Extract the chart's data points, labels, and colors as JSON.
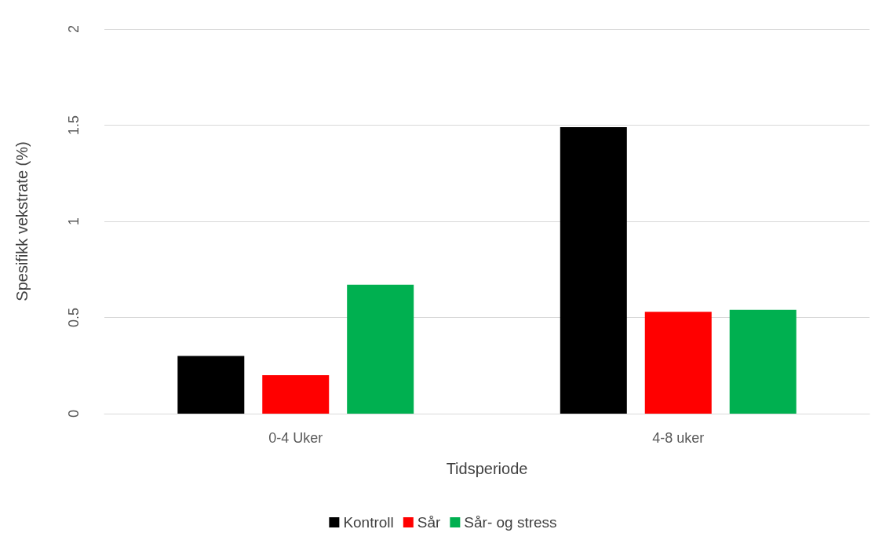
{
  "chart_data": {
    "type": "bar",
    "xlabel": "Tidsperiode",
    "ylabel": "Spesifikk vekstrate (%)",
    "categories": [
      "0-4 Uker",
      "4-8 uker"
    ],
    "series": [
      {
        "name": "Kontroll",
        "color": "#000000",
        "values": [
          0.3,
          1.49
        ]
      },
      {
        "name": "Sår",
        "color": "#ff0000",
        "values": [
          0.2,
          0.53
        ]
      },
      {
        "name": "Sår- og stress",
        "color": "#00b050",
        "values": [
          0.67,
          0.54
        ]
      }
    ],
    "ylim": [
      0,
      2
    ],
    "yticks": [
      0,
      0.5,
      1,
      1.5,
      2
    ],
    "grid": "y",
    "legend": "bottom"
  }
}
